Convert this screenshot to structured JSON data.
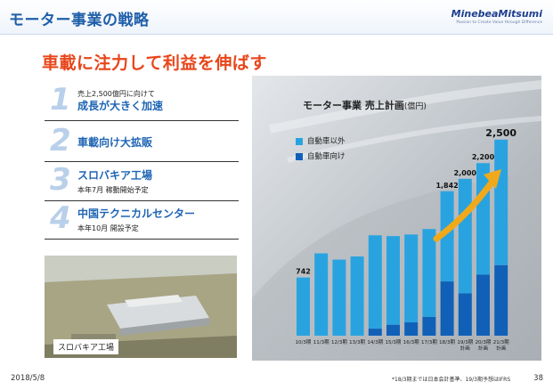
{
  "slide": {
    "title": "モーター事業の戦略",
    "logo_name": "MinebeaMitsumi",
    "logo_tagline": "Passion to Create Value through Difference",
    "headline": "車載に注力して利益を伸ばす"
  },
  "points": [
    {
      "num": "1",
      "pre": "売上2,500億円に向けて",
      "main": "成長が大きく加速",
      "sub": ""
    },
    {
      "num": "2",
      "pre": "",
      "main": "車載向け大拡販",
      "sub": ""
    },
    {
      "num": "3",
      "pre": "",
      "main": "スロバキア工場",
      "sub": "本年7月 稼動開始予定"
    },
    {
      "num": "4",
      "pre": "",
      "main": "中国テクニカルセンター",
      "sub": "本年10月 開設予定"
    }
  ],
  "photo": {
    "caption": "スロバキア工場"
  },
  "chart_data": {
    "type": "bar",
    "title": "モーター事業 売上計画",
    "unit": "(億円)",
    "categories": [
      "10/3期",
      "11/3期",
      "12/3期",
      "13/3期",
      "14/3期",
      "15/3期",
      "16/3期",
      "17/3期",
      "18/3期",
      "19/3期 計画",
      "20/3期 計画",
      "21/3期 計画"
    ],
    "series": [
      {
        "name": "自動車以外",
        "color": "#29a3e0",
        "values": [
          742,
          1050,
          970,
          1010,
          1190,
          1130,
          1120,
          1120,
          1150,
          1460,
          1420,
          1600
        ]
      },
      {
        "name": "自動車向け",
        "color": "#1060b8",
        "values": [
          0,
          0,
          0,
          0,
          90,
          140,
          170,
          240,
          692,
          540,
          780,
          900
        ]
      }
    ],
    "data_labels": [
      {
        "index": 0,
        "text": "742"
      },
      {
        "index": 8,
        "text": "1,842"
      },
      {
        "index": 9,
        "text": "2,000"
      },
      {
        "index": 10,
        "text": "2,200"
      },
      {
        "index": 11,
        "text": "2,500"
      }
    ],
    "ylim": [
      0,
      2600
    ]
  },
  "footer": {
    "date": "2018/5/8",
    "footnote": "*18/3期までは日本会計基準、19/3期予想はIFRS",
    "page": "38"
  }
}
